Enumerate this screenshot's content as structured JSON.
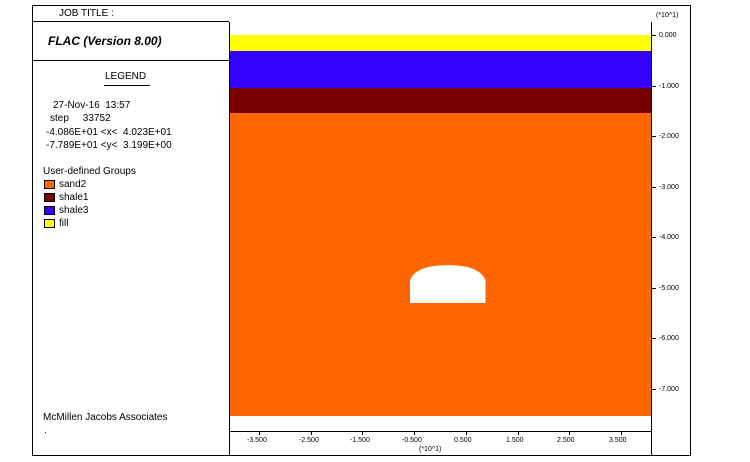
{
  "header": {
    "job_title_label": "JOB TITLE :",
    "scale_top": "(*10^1)"
  },
  "title": "FLAC (Version 8.00)",
  "legend": {
    "heading": "LEGEND",
    "date": "27-Nov-16  13:57",
    "step": "step     33752",
    "x_range": "-4.086E+01 <x<  4.023E+01",
    "y_range": "-7.789E+01 <y<  3.199E+00",
    "groups_heading": "User-defined Groups",
    "groups": [
      {
        "label": "sand2",
        "color": "#ff6600"
      },
      {
        "label": "shale1",
        "color": "#7a0000"
      },
      {
        "label": "shale3",
        "color": "#3300ff"
      },
      {
        "label": "fill",
        "color": "#ffff00"
      }
    ]
  },
  "footer": {
    "company": "McMillen Jacobs Associates",
    "dot": "."
  },
  "chart_data": {
    "type": "diagram",
    "x_axis": {
      "ticks": [
        "-3.500",
        "-2.500",
        "-1.500",
        "-0.500",
        "0.500",
        "1.500",
        "2.500",
        "3.500"
      ],
      "tick_values": [
        -3.5,
        -2.5,
        -1.5,
        -0.5,
        0.5,
        1.5,
        2.5,
        3.5
      ],
      "scale_label": "(*10^1)",
      "range": [
        -4.086,
        4.023
      ]
    },
    "y_axis": {
      "ticks": [
        "0.000",
        "-1.000",
        "-2.000",
        "-3.000",
        "-4.000",
        "-5.000",
        "-6.000",
        "-7.000"
      ],
      "tick_values": [
        0,
        -1,
        -2,
        -3,
        -4,
        -5,
        -6,
        -7
      ],
      "scale_label": "(*10^1)",
      "range": [
        -7.789,
        0.3199
      ]
    },
    "layers": [
      {
        "group": "fill",
        "y_top": 0.0,
        "y_bottom": -0.32,
        "color": "#ffff00"
      },
      {
        "group": "shale3",
        "y_top": -0.32,
        "y_bottom": -1.05,
        "color": "#3300ff"
      },
      {
        "group": "shale1",
        "y_top": -1.05,
        "y_bottom": -1.55,
        "color": "#7a0000"
      },
      {
        "group": "sand2",
        "y_top": -1.55,
        "y_bottom": -7.55,
        "color": "#ff6600"
      }
    ],
    "tunnel": {
      "x_left": -0.58,
      "x_right": 0.88,
      "y_top": -4.55,
      "y_spring": -4.85,
      "y_bottom": -5.3,
      "color": "#ffffff"
    }
  }
}
